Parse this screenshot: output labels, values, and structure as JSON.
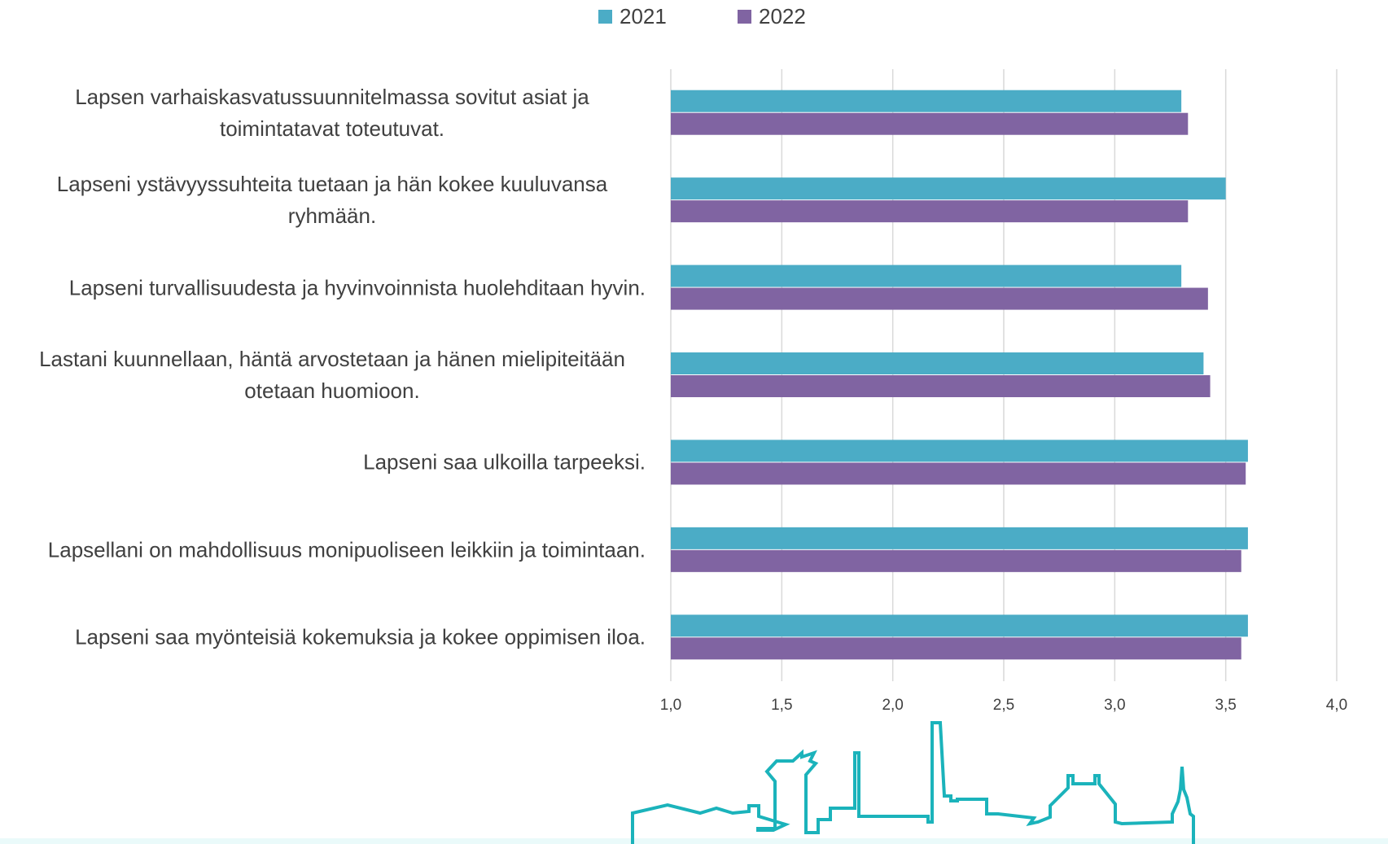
{
  "chart_data": {
    "type": "bar",
    "orientation": "horizontal",
    "categories": [
      "Lapsen varhaiskasvatussuunnitelmassa sovitut asiat ja toimintatavat toteutuvat.",
      "Lapseni ystävyyssuhteita tuetaan ja hän kokee kuuluvansa ryhmään.",
      "Lapseni turvallisuudesta ja hyvinvoinnista huolehditaan hyvin.",
      "Lastani kuunnellaan, häntä arvostetaan ja hänen mielipiteitään otetaan huomioon.",
      "Lapseni saa ulkoilla tarpeeksi.",
      "Lapsellani on mahdollisuus monipuoliseen leikkiin ja toimintaan.",
      "Lapseni saa myönteisiä kokemuksia ja kokee oppimisen iloa."
    ],
    "series": [
      {
        "name": "2021",
        "color": "#4bacc6",
        "values": [
          3.3,
          3.5,
          3.3,
          3.4,
          3.6,
          3.6,
          3.6
        ]
      },
      {
        "name": "2022",
        "color": "#8064a2",
        "values": [
          3.33,
          3.33,
          3.42,
          3.43,
          3.59,
          3.57,
          3.57
        ]
      }
    ],
    "xlim": [
      1.0,
      4.0
    ],
    "xticks": [
      {
        "value": 1.0,
        "label": "1,0"
      },
      {
        "value": 1.5,
        "label": "1,5"
      },
      {
        "value": 2.0,
        "label": "2,0"
      },
      {
        "value": 2.5,
        "label": "2,5"
      },
      {
        "value": 3.0,
        "label": "3,0"
      },
      {
        "value": 3.5,
        "label": "3,5"
      },
      {
        "value": 4.0,
        "label": "4,0"
      }
    ],
    "grid": true,
    "legend": "top"
  }
}
